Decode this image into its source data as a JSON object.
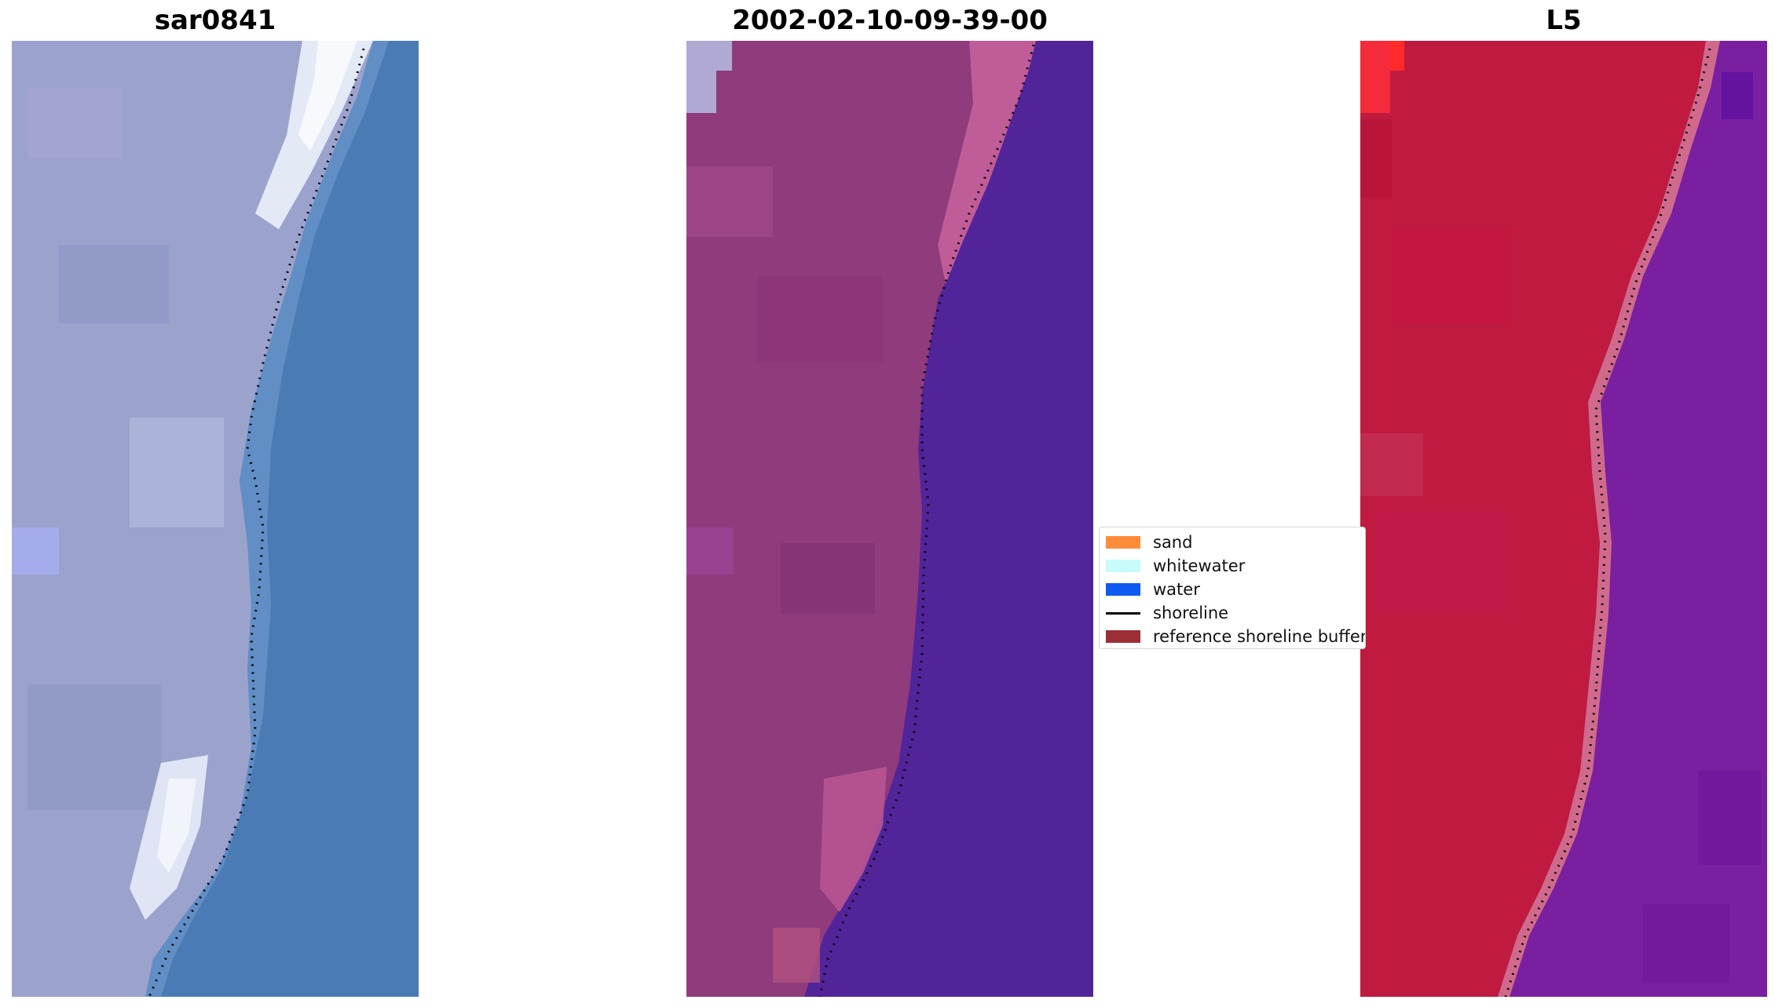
{
  "panels": [
    {
      "title": "sar0841"
    },
    {
      "title": "2002-02-10-09-39-00"
    },
    {
      "title": "L5"
    }
  ],
  "legend": {
    "items": [
      {
        "label": "sand",
        "color": "#ff8c3a",
        "kind": "patch"
      },
      {
        "label": "whitewater",
        "color": "#c8fbfb",
        "kind": "patch"
      },
      {
        "label": "water",
        "color": "#0f5af0",
        "kind": "patch"
      },
      {
        "label": "shoreline",
        "color": "#000000",
        "kind": "line"
      },
      {
        "label": "reference shoreline buffer",
        "color": "#9b2f35",
        "kind": "patch"
      }
    ]
  },
  "colors": {
    "sar_land": "#9aa2cc",
    "sar_water": "#4a7bb5",
    "sar_surf": "#f0f4fa",
    "ts_land": "#8f3b7c",
    "ts_water": "#52249a",
    "ts_edge": "#c05c98",
    "l5_land": "#c01a40",
    "l5_water": "#7a1fa0",
    "l5_edge": "#d06a8c"
  }
}
